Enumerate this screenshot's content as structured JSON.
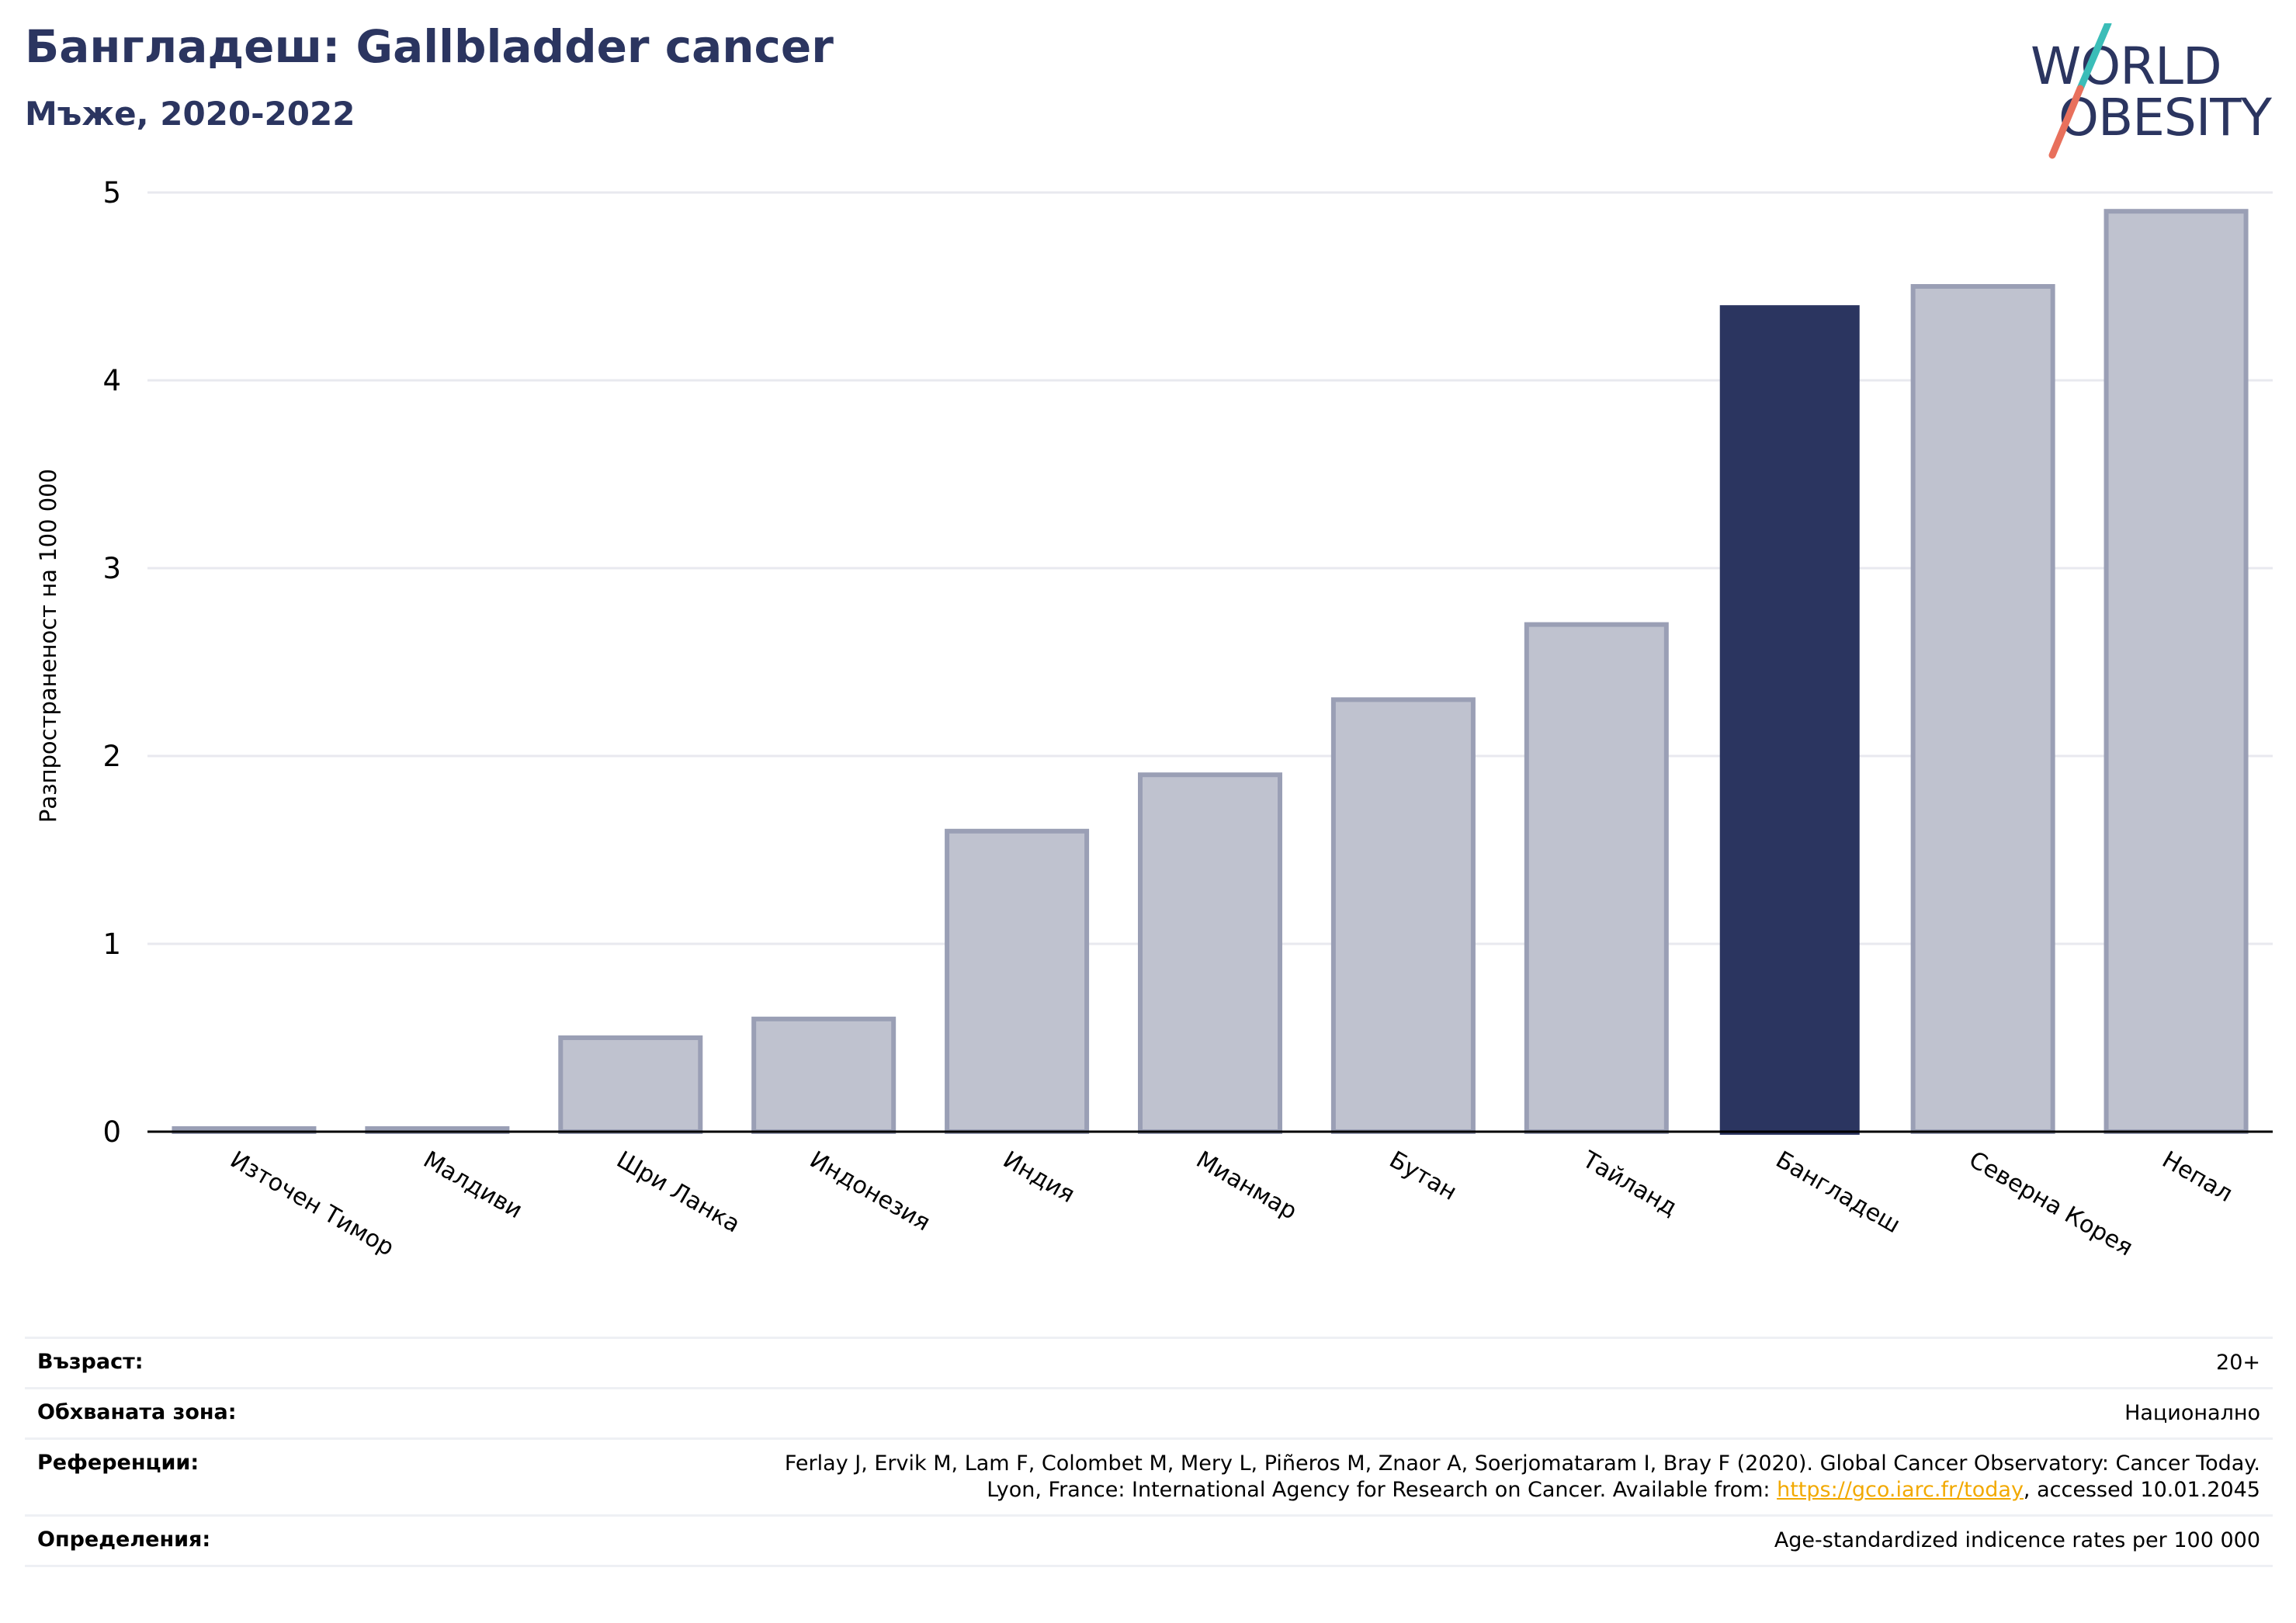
{
  "header": {
    "title": "Бангладеш: Gallbladder cancer",
    "subtitle": "Мъже, 2020-2022"
  },
  "logo": {
    "line1": "WORLD",
    "line2": "OBESITY",
    "colors": {
      "text": "#2b3560",
      "slash_top": "#3bbdb8",
      "slash_bottom": "#e8705c"
    }
  },
  "colors": {
    "highlight_bar": "#2b3560",
    "other_bar_fill": "#bfc2cf",
    "other_bar_stroke": "#9a9fb5",
    "grid": "#e8e9ef",
    "axis": "#000000"
  },
  "chart_data": {
    "type": "bar",
    "title": "",
    "xlabel": "",
    "ylabel": "Разпространеност  на 100 000",
    "categories": [
      "Източен Тимор",
      "Малдиви",
      "Шри Ланка",
      "Индонезия",
      "Индия",
      "Мианмар",
      "Бутан",
      "Тайланд",
      "Бангладеш",
      "Северна Корея",
      "Непал"
    ],
    "values": [
      0.0,
      0.0,
      0.5,
      0.6,
      1.6,
      1.9,
      2.3,
      2.7,
      4.4,
      4.5,
      4.9
    ],
    "highlight": "Бангладеш",
    "ylim": [
      0,
      5
    ],
    "yticks": [
      0,
      1,
      2,
      3,
      4,
      5
    ],
    "grid": true
  },
  "info": {
    "age_label": "Възраст:",
    "age_value": "20+",
    "area_label": "Обхваната зона:",
    "area_value": "Национално",
    "ref_label": "Референции:",
    "ref_line1": "Ferlay J, Ervik M, Lam F, Colombet M, Mery L, Piñeros M, Znaor A, Soerjomataram I, Bray F (2020). Global Cancer Observatory: Cancer Today.",
    "ref_line2_pre": "Lyon, France: International Agency for Research on Cancer. Available from: ",
    "ref_link": "https://gco.iarc.fr/today",
    "ref_line2_post": ", accessed 10.01.2045",
    "def_label": "Определения:",
    "def_value": "Age-standardized indicence rates per 100 000"
  }
}
